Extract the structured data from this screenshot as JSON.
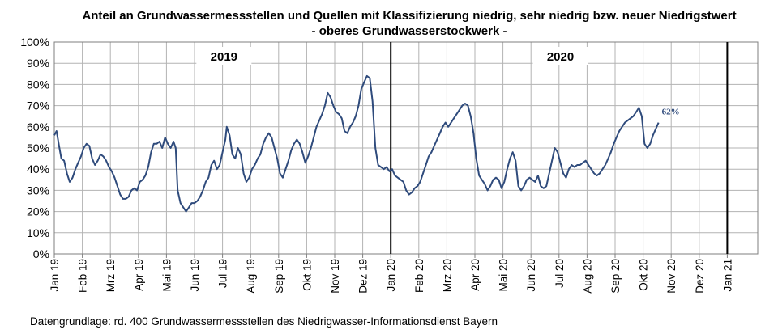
{
  "title_line1": "Anteil an Grundwassermessstellen und Quellen mit Klassifizierung niedrig, sehr niedrig bzw. neuer Niedrigstwert",
  "title_line2": "- oberes Grundwasserstockwerk -",
  "source": "Datengrundlage:  rd. 400 Grundwassermessstellen  des Niedrigwasser-Informationsdienst  Bayern",
  "chart_data": {
    "type": "line",
    "title": "Anteil an Grundwassermessstellen und Quellen mit Klassifizierung niedrig, sehr niedrig bzw. neuer Niedrigstwert - oberes Grundwasserstockwerk -",
    "ylim": [
      0,
      100
    ],
    "y_ticks": [
      "0%",
      "10%",
      "20%",
      "30%",
      "40%",
      "50%",
      "60%",
      "70%",
      "80%",
      "90%",
      "100%"
    ],
    "x_tick_labels": [
      "Jan 19",
      "Feb 19",
      "Mrz 19",
      "Apr 19",
      "Mai 19",
      "Jun 19",
      "Jul 19",
      "Aug 19",
      "Sep 19",
      "Okt 19",
      "Nov 19",
      "Dez 19",
      "Jan 20",
      "Feb 20",
      "Mrz 20",
      "Apr 20",
      "Mai 20",
      "Jun 20",
      "Jul 20",
      "Aug 20",
      "Sep 20",
      "Okt 20",
      "Nov 20",
      "Dez 20",
      "Jan 21"
    ],
    "year_labels": [
      "2019",
      "2020"
    ],
    "year_dividers": [
      "Jan 20",
      "Jan 21"
    ],
    "annotation": "62%",
    "grid": true,
    "line_color": "#2f4b7c",
    "x_unit": "months since Jan 19",
    "points": [
      [
        0.0,
        56
      ],
      [
        0.08,
        58
      ],
      [
        0.17,
        51
      ],
      [
        0.25,
        45
      ],
      [
        0.35,
        44
      ],
      [
        0.45,
        38
      ],
      [
        0.55,
        34
      ],
      [
        0.65,
        36
      ],
      [
        0.75,
        40
      ],
      [
        0.85,
        43
      ],
      [
        0.95,
        46
      ],
      [
        1.05,
        50
      ],
      [
        1.15,
        52
      ],
      [
        1.25,
        51
      ],
      [
        1.35,
        45
      ],
      [
        1.45,
        42
      ],
      [
        1.55,
        44
      ],
      [
        1.65,
        47
      ],
      [
        1.75,
        46
      ],
      [
        1.85,
        44
      ],
      [
        1.95,
        41
      ],
      [
        2.05,
        39
      ],
      [
        2.15,
        36
      ],
      [
        2.25,
        32
      ],
      [
        2.35,
        28
      ],
      [
        2.45,
        26
      ],
      [
        2.55,
        26
      ],
      [
        2.65,
        27
      ],
      [
        2.75,
        30
      ],
      [
        2.85,
        31
      ],
      [
        2.95,
        30
      ],
      [
        3.05,
        34
      ],
      [
        3.15,
        35
      ],
      [
        3.25,
        37
      ],
      [
        3.35,
        41
      ],
      [
        3.45,
        48
      ],
      [
        3.55,
        52
      ],
      [
        3.65,
        52
      ],
      [
        3.75,
        53
      ],
      [
        3.85,
        50
      ],
      [
        3.95,
        55
      ],
      [
        4.05,
        52
      ],
      [
        4.15,
        50
      ],
      [
        4.25,
        53
      ],
      [
        4.33,
        50
      ],
      [
        4.4,
        30
      ],
      [
        4.5,
        24
      ],
      [
        4.6,
        22
      ],
      [
        4.7,
        20
      ],
      [
        4.8,
        22
      ],
      [
        4.9,
        24
      ],
      [
        5.0,
        24
      ],
      [
        5.1,
        25
      ],
      [
        5.2,
        27
      ],
      [
        5.3,
        30
      ],
      [
        5.4,
        34
      ],
      [
        5.5,
        36
      ],
      [
        5.6,
        42
      ],
      [
        5.7,
        44
      ],
      [
        5.8,
        40
      ],
      [
        5.9,
        42
      ],
      [
        6.0,
        48
      ],
      [
        6.1,
        54
      ],
      [
        6.15,
        60
      ],
      [
        6.25,
        56
      ],
      [
        6.35,
        47
      ],
      [
        6.45,
        45
      ],
      [
        6.55,
        50
      ],
      [
        6.65,
        47
      ],
      [
        6.75,
        38
      ],
      [
        6.85,
        34
      ],
      [
        6.95,
        36
      ],
      [
        7.05,
        40
      ],
      [
        7.15,
        42
      ],
      [
        7.25,
        45
      ],
      [
        7.35,
        47
      ],
      [
        7.45,
        52
      ],
      [
        7.55,
        55
      ],
      [
        7.65,
        57
      ],
      [
        7.75,
        55
      ],
      [
        7.85,
        50
      ],
      [
        7.95,
        45
      ],
      [
        8.05,
        38
      ],
      [
        8.15,
        36
      ],
      [
        8.25,
        40
      ],
      [
        8.35,
        44
      ],
      [
        8.45,
        49
      ],
      [
        8.55,
        52
      ],
      [
        8.65,
        54
      ],
      [
        8.75,
        52
      ],
      [
        8.85,
        48
      ],
      [
        8.95,
        43
      ],
      [
        9.05,
        46
      ],
      [
        9.15,
        50
      ],
      [
        9.25,
        55
      ],
      [
        9.35,
        60
      ],
      [
        9.45,
        63
      ],
      [
        9.55,
        66
      ],
      [
        9.65,
        70
      ],
      [
        9.75,
        76
      ],
      [
        9.85,
        74
      ],
      [
        9.95,
        70
      ],
      [
        10.05,
        67
      ],
      [
        10.15,
        66
      ],
      [
        10.25,
        64
      ],
      [
        10.35,
        58
      ],
      [
        10.45,
        57
      ],
      [
        10.55,
        60
      ],
      [
        10.65,
        62
      ],
      [
        10.75,
        65
      ],
      [
        10.85,
        70
      ],
      [
        10.95,
        78
      ],
      [
        11.05,
        81
      ],
      [
        11.15,
        84
      ],
      [
        11.25,
        83
      ],
      [
        11.35,
        72
      ],
      [
        11.45,
        50
      ],
      [
        11.55,
        42
      ],
      [
        11.65,
        41
      ],
      [
        11.75,
        40
      ],
      [
        11.85,
        41
      ],
      [
        11.95,
        39
      ],
      [
        12.05,
        40
      ],
      [
        12.15,
        37
      ],
      [
        12.25,
        36
      ],
      [
        12.35,
        35
      ],
      [
        12.45,
        34
      ],
      [
        12.55,
        30
      ],
      [
        12.65,
        28
      ],
      [
        12.75,
        29
      ],
      [
        12.85,
        31
      ],
      [
        12.95,
        32
      ],
      [
        13.05,
        34
      ],
      [
        13.15,
        38
      ],
      [
        13.25,
        42
      ],
      [
        13.35,
        46
      ],
      [
        13.45,
        48
      ],
      [
        13.55,
        51
      ],
      [
        13.65,
        54
      ],
      [
        13.75,
        57
      ],
      [
        13.85,
        60
      ],
      [
        13.95,
        62
      ],
      [
        14.05,
        60
      ],
      [
        14.15,
        62
      ],
      [
        14.25,
        64
      ],
      [
        14.35,
        66
      ],
      [
        14.45,
        68
      ],
      [
        14.55,
        70
      ],
      [
        14.65,
        71
      ],
      [
        14.75,
        70
      ],
      [
        14.85,
        65
      ],
      [
        14.95,
        57
      ],
      [
        15.05,
        45
      ],
      [
        15.15,
        37
      ],
      [
        15.25,
        35
      ],
      [
        15.35,
        33
      ],
      [
        15.45,
        30
      ],
      [
        15.55,
        32
      ],
      [
        15.65,
        35
      ],
      [
        15.75,
        36
      ],
      [
        15.85,
        35
      ],
      [
        15.95,
        31
      ],
      [
        16.05,
        34
      ],
      [
        16.15,
        40
      ],
      [
        16.25,
        45
      ],
      [
        16.35,
        48
      ],
      [
        16.45,
        44
      ],
      [
        16.55,
        32
      ],
      [
        16.65,
        30
      ],
      [
        16.75,
        32
      ],
      [
        16.85,
        35
      ],
      [
        16.95,
        36
      ],
      [
        17.05,
        35
      ],
      [
        17.15,
        34
      ],
      [
        17.25,
        37
      ],
      [
        17.35,
        32
      ],
      [
        17.45,
        31
      ],
      [
        17.55,
        32
      ],
      [
        17.65,
        38
      ],
      [
        17.75,
        44
      ],
      [
        17.85,
        50
      ],
      [
        17.95,
        48
      ],
      [
        18.05,
        43
      ],
      [
        18.15,
        38
      ],
      [
        18.25,
        36
      ],
      [
        18.35,
        40
      ],
      [
        18.45,
        42
      ],
      [
        18.55,
        41
      ],
      [
        18.65,
        42
      ],
      [
        18.75,
        42
      ],
      [
        18.85,
        43
      ],
      [
        18.95,
        44
      ],
      [
        19.05,
        42
      ],
      [
        19.15,
        40
      ],
      [
        19.25,
        38
      ],
      [
        19.35,
        37
      ],
      [
        19.45,
        38
      ],
      [
        19.55,
        40
      ],
      [
        19.65,
        42
      ],
      [
        19.75,
        45
      ],
      [
        19.85,
        48
      ],
      [
        19.95,
        52
      ],
      [
        20.05,
        55
      ],
      [
        20.15,
        58
      ],
      [
        20.25,
        60
      ],
      [
        20.35,
        62
      ],
      [
        20.45,
        63
      ],
      [
        20.55,
        64
      ],
      [
        20.65,
        65
      ],
      [
        20.75,
        67
      ],
      [
        20.85,
        69
      ],
      [
        20.95,
        65
      ],
      [
        21.05,
        52
      ],
      [
        21.15,
        50
      ],
      [
        21.25,
        52
      ],
      [
        21.35,
        56
      ],
      [
        21.45,
        59
      ],
      [
        21.55,
        62
      ]
    ]
  }
}
